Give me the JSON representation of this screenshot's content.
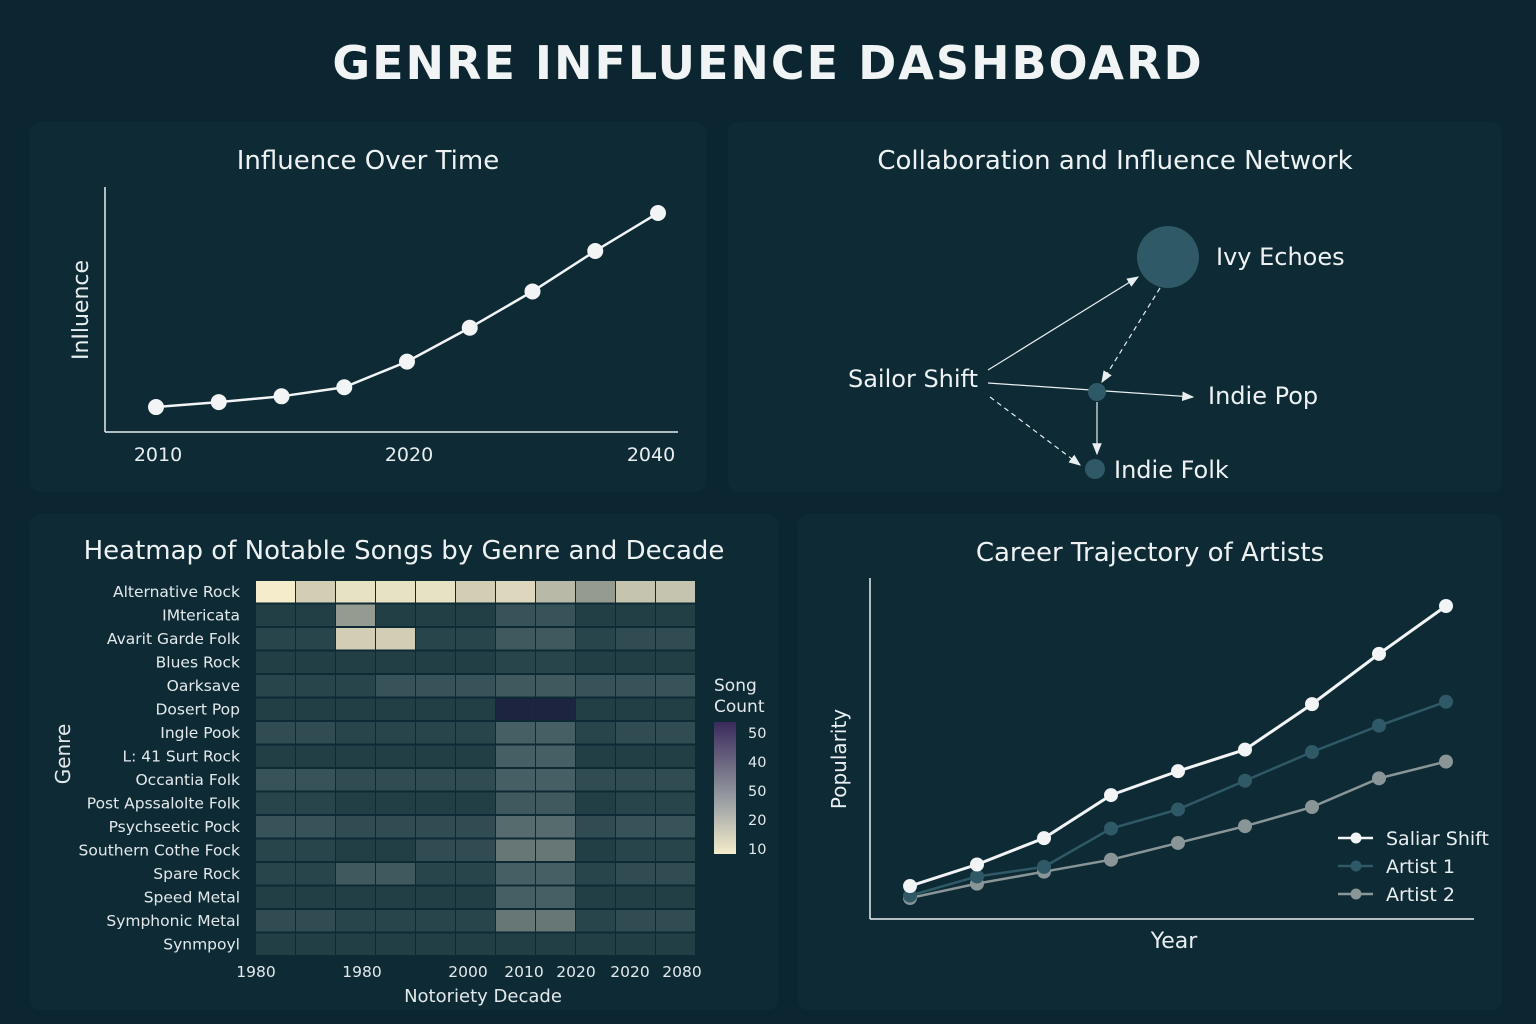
{
  "dashboard": {
    "title": "GENRE INFLUENCE DASHBOARD"
  },
  "colors": {
    "background": "#0b2630",
    "panel": "#0d2a35",
    "line_primary": "#f2f4f5",
    "node": "#2f5966",
    "artist1": "#2f5966",
    "artist2": "#8a9597"
  },
  "chart_data": [
    {
      "type": "line",
      "title": "Influence Over Time",
      "ylabel": "InIluence",
      "xlabel": "",
      "x_tick_labels": [
        "2010",
        "2020",
        "2040"
      ],
      "points": [
        6,
        12,
        19,
        30,
        61,
        102,
        146,
        195,
        241
      ],
      "grid": false
    },
    {
      "type": "network",
      "title": "Collaboration and Influence Network",
      "nodes": [
        {
          "id": "ivy",
          "label": "Ivy Echoes"
        },
        {
          "id": "sailor",
          "label": "Sailor Shift"
        },
        {
          "id": "hub",
          "label": ""
        },
        {
          "id": "pop",
          "label": "Indie Pop"
        },
        {
          "id": "folk",
          "label": "Indie Folk"
        }
      ],
      "edges": [
        {
          "from": "sailor",
          "to": "ivy",
          "style": "solid"
        },
        {
          "from": "ivy",
          "to": "hub",
          "style": "dashed"
        },
        {
          "from": "sailor",
          "to": "pop",
          "style": "solid"
        },
        {
          "from": "hub",
          "to": "folk",
          "style": "solid"
        },
        {
          "from": "sailor",
          "to": "folk",
          "style": "dashed"
        }
      ]
    },
    {
      "type": "heatmap",
      "title": "Heatmap of Notable Songs by Genre and Decade",
      "ylabel": "Genre",
      "xlabel": "Notoriety Decade",
      "x_tick_labels": [
        "1980",
        "1980",
        "2000",
        "2010",
        "2020",
        "2020",
        "2080"
      ],
      "legend_title": "Song Count",
      "legend_ticks": [
        "50",
        "40",
        "50",
        "20",
        "10"
      ],
      "rows": [
        "Alternative Rock",
        "IMtericata",
        "Avarit Garde Folk",
        "Blues Rock",
        "Oarksave",
        "Dosert Pop",
        "Ingle Pook",
        "L: 41 Surt Rock",
        "Occantia Folk",
        "Post Apssalolte Folk",
        "Psychseetic Pock",
        "Southern Cothe Fock",
        "Spare Rock",
        "Speed Metal",
        "Symphonic Metal",
        "Synmpoyl"
      ],
      "values": [
        [
          1.0,
          0.85,
          0.95,
          0.95,
          0.95,
          0.85,
          0.9,
          0.75,
          0.6,
          0.8,
          0.8
        ],
        [
          0.1,
          0.1,
          0.6,
          0.1,
          0.1,
          0.1,
          0.25,
          0.25,
          0.1,
          0.1,
          0.1
        ],
        [
          0.15,
          0.15,
          0.85,
          0.85,
          0.15,
          0.15,
          0.3,
          0.3,
          0.15,
          0.2,
          0.2
        ],
        [
          0.1,
          0.1,
          0.1,
          0.1,
          0.1,
          0.1,
          0.15,
          0.15,
          0.1,
          0.1,
          0.1
        ],
        [
          0.15,
          0.15,
          0.15,
          0.25,
          0.25,
          0.25,
          0.3,
          0.3,
          0.25,
          0.25,
          0.25
        ],
        [
          0.1,
          0.1,
          0.1,
          0.1,
          0.1,
          0.1,
          0.05,
          0.05,
          0.1,
          0.1,
          0.1
        ],
        [
          0.2,
          0.2,
          0.15,
          0.15,
          0.15,
          0.15,
          0.35,
          0.35,
          0.15,
          0.2,
          0.2
        ],
        [
          0.1,
          0.1,
          0.1,
          0.1,
          0.1,
          0.1,
          0.35,
          0.35,
          0.1,
          0.1,
          0.1
        ],
        [
          0.25,
          0.25,
          0.2,
          0.2,
          0.2,
          0.2,
          0.35,
          0.35,
          0.2,
          0.2,
          0.2
        ],
        [
          0.15,
          0.15,
          0.1,
          0.1,
          0.1,
          0.1,
          0.3,
          0.3,
          0.1,
          0.15,
          0.15
        ],
        [
          0.25,
          0.25,
          0.2,
          0.2,
          0.2,
          0.2,
          0.4,
          0.4,
          0.2,
          0.25,
          0.25
        ],
        [
          0.15,
          0.15,
          0.1,
          0.1,
          0.2,
          0.2,
          0.45,
          0.45,
          0.1,
          0.15,
          0.15
        ],
        [
          0.15,
          0.15,
          0.3,
          0.3,
          0.15,
          0.15,
          0.35,
          0.35,
          0.15,
          0.2,
          0.2
        ],
        [
          0.1,
          0.1,
          0.1,
          0.1,
          0.1,
          0.1,
          0.35,
          0.35,
          0.1,
          0.1,
          0.1
        ],
        [
          0.2,
          0.2,
          0.15,
          0.15,
          0.15,
          0.15,
          0.45,
          0.45,
          0.15,
          0.2,
          0.2
        ],
        [
          0.1,
          0.1,
          0.1,
          0.1,
          0.1,
          0.1,
          0.1,
          0.1,
          0.1,
          0.1,
          0.1
        ]
      ]
    },
    {
      "type": "line",
      "title": "Career Trajectory of Artists",
      "xlabel": "Year",
      "ylabel": "Popularity",
      "legend_placement": "bottom-right",
      "series": [
        {
          "name": "Saliar Shift",
          "values": [
            5,
            14,
            25,
            43,
            53,
            62,
            81,
            102,
            122
          ]
        },
        {
          "name": "Artist 1",
          "values": [
            1,
            9,
            13,
            29,
            37,
            49,
            61,
            72,
            82
          ]
        },
        {
          "name": "Artist 2",
          "values": [
            0,
            6,
            11,
            16,
            23,
            30,
            38,
            50,
            57
          ]
        }
      ]
    }
  ]
}
